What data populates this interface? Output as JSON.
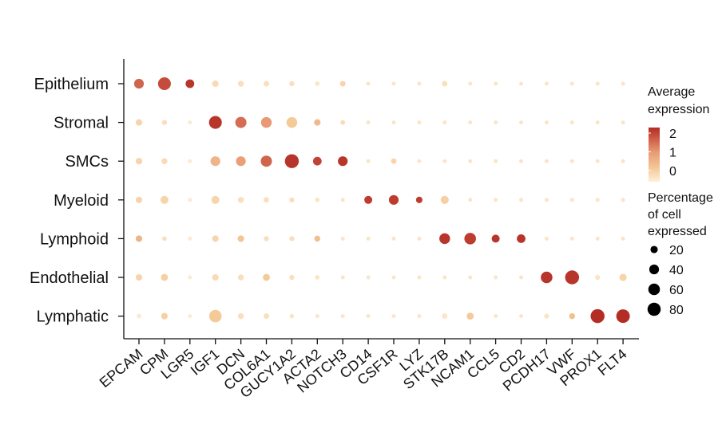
{
  "chart_data": {
    "type": "dotplot",
    "rows": [
      "Epithelium",
      "Stromal",
      "SMCs",
      "Myeloid",
      "Lymphoid",
      "Endothelial",
      "Lymphatic"
    ],
    "columns": [
      "EPCAM",
      "CPM",
      "LGR5",
      "IGF1",
      "DCN",
      "COL6A1",
      "GUCY1A2",
      "ACTA2",
      "NOTCH3",
      "CD14",
      "CSF1R",
      "LYZ",
      "STK17B",
      "NCAM1",
      "CCL5",
      "CD2",
      "PCDH17",
      "VWF",
      "PROX1",
      "FLT4"
    ],
    "avg_expression": [
      [
        1.6,
        1.9,
        2.2,
        -0.2,
        -0.3,
        -0.3,
        -0.3,
        -0.4,
        -0.1,
        -0.4,
        -0.4,
        -0.4,
        -0.3,
        -0.4,
        -0.4,
        -0.4,
        -0.4,
        -0.4,
        -0.4,
        -0.4
      ],
      [
        -0.1,
        -0.3,
        -0.5,
        2.2,
        1.5,
        1.0,
        0.1,
        0.4,
        -0.2,
        -0.4,
        -0.4,
        -0.4,
        -0.4,
        -0.4,
        -0.4,
        -0.4,
        -0.4,
        -0.4,
        -0.4,
        -0.4
      ],
      [
        -0.1,
        -0.2,
        -0.5,
        0.5,
        0.9,
        1.6,
        2.2,
        2.0,
        2.2,
        -0.4,
        -0.1,
        -0.4,
        -0.4,
        -0.4,
        -0.4,
        -0.4,
        -0.4,
        -0.4,
        -0.4,
        -0.4
      ],
      [
        -0.1,
        -0.1,
        -0.5,
        -0.1,
        -0.3,
        -0.3,
        -0.3,
        -0.4,
        -0.4,
        2.1,
        2.1,
        2.1,
        0.0,
        -0.4,
        -0.4,
        -0.4,
        -0.4,
        -0.4,
        -0.4,
        -0.4
      ],
      [
        0.5,
        -0.3,
        -0.5,
        -0.1,
        0.2,
        -0.3,
        -0.3,
        0.3,
        -0.4,
        -0.4,
        -0.4,
        -0.4,
        2.2,
        2.1,
        2.2,
        2.2,
        -0.4,
        -0.4,
        -0.4,
        -0.4
      ],
      [
        -0.1,
        0.0,
        -0.5,
        -0.2,
        -0.3,
        0.1,
        -0.3,
        -0.4,
        -0.4,
        -0.4,
        -0.4,
        -0.4,
        -0.4,
        -0.4,
        -0.4,
        -0.4,
        2.2,
        2.2,
        -0.4,
        -0.1
      ],
      [
        -0.5,
        0.0,
        -0.5,
        0.1,
        -0.3,
        -0.3,
        -0.4,
        -0.4,
        -0.4,
        -0.4,
        -0.4,
        -0.4,
        -0.4,
        0.1,
        -0.4,
        -0.4,
        -0.4,
        0.3,
        2.3,
        2.3
      ]
    ],
    "pct_expressed": [
      [
        40,
        75,
        30,
        15,
        12,
        10,
        8,
        6,
        10,
        4,
        4,
        4,
        10,
        4,
        4,
        4,
        4,
        4,
        4,
        4
      ],
      [
        15,
        8,
        4,
        75,
        55,
        50,
        50,
        15,
        6,
        4,
        4,
        4,
        4,
        4,
        4,
        4,
        4,
        4,
        4,
        4
      ],
      [
        15,
        12,
        4,
        40,
        40,
        55,
        90,
        30,
        40,
        4,
        10,
        4,
        4,
        4,
        4,
        4,
        4,
        4,
        4,
        4
      ],
      [
        15,
        25,
        4,
        25,
        12,
        10,
        8,
        6,
        4,
        25,
        40,
        15,
        25,
        4,
        4,
        4,
        4,
        4,
        4,
        4
      ],
      [
        15,
        6,
        4,
        15,
        15,
        8,
        8,
        12,
        4,
        4,
        4,
        4,
        50,
        60,
        25,
        30,
        4,
        4,
        4,
        4
      ],
      [
        15,
        18,
        4,
        15,
        12,
        18,
        8,
        6,
        4,
        4,
        4,
        4,
        4,
        4,
        4,
        4,
        60,
        90,
        8,
        20
      ],
      [
        6,
        15,
        4,
        70,
        12,
        10,
        6,
        4,
        4,
        4,
        4,
        4,
        10,
        18,
        4,
        4,
        8,
        12,
        90,
        85
      ]
    ],
    "color_legend": {
      "title": [
        "Average",
        "expression"
      ],
      "ticks": [
        0,
        1,
        2
      ],
      "range": [
        -0.6,
        2.3
      ]
    },
    "size_legend": {
      "title": [
        "Percentage",
        "of cell",
        "expressed"
      ],
      "values": [
        20,
        40,
        60,
        80
      ]
    },
    "colors": {
      "low": "#fbe3be",
      "mid": "#e79a74",
      "high": "#b42d25"
    },
    "legend_placement": "right",
    "grid": false
  }
}
